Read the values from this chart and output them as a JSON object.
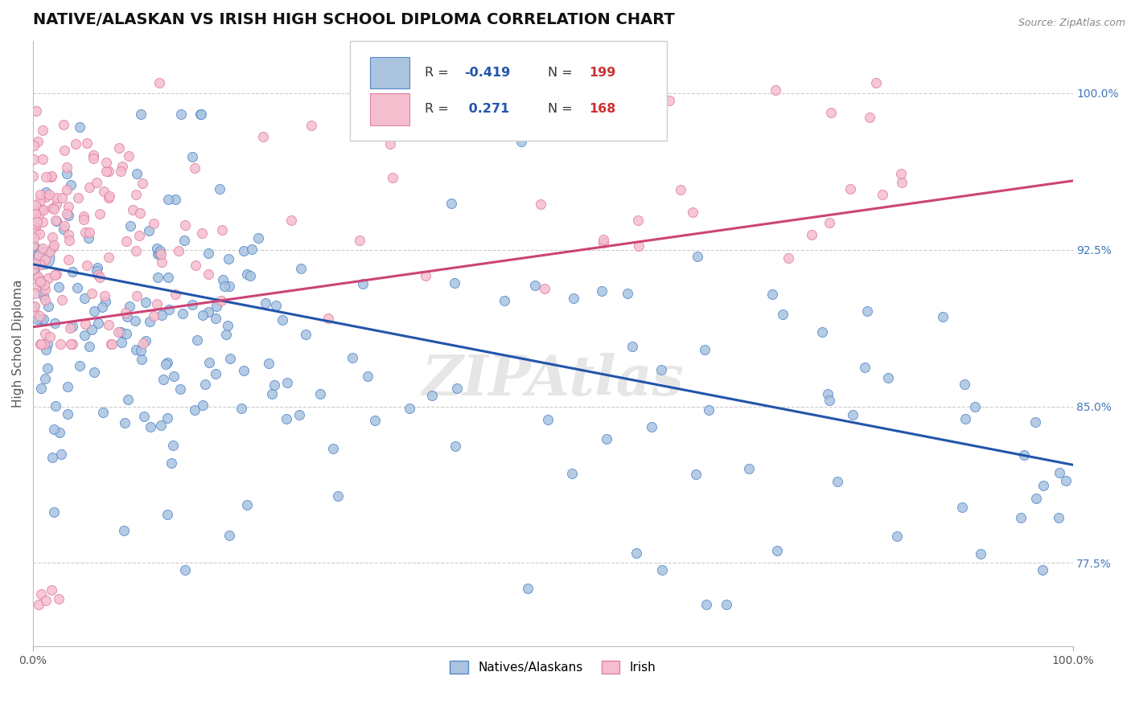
{
  "title": "NATIVE/ALASKAN VS IRISH HIGH SCHOOL DIPLOMA CORRELATION CHART",
  "source_text": "Source: ZipAtlas.com",
  "ylabel": "High School Diploma",
  "legend_labels": [
    "Natives/Alaskans",
    "Irish"
  ],
  "blue_color": "#aac4e0",
  "blue_edge_color": "#5588cc",
  "pink_color": "#f5bece",
  "pink_edge_color": "#e080a0",
  "blue_line_color": "#2255aa",
  "pink_line_color": "#cc4477",
  "R_blue": -0.419,
  "N_blue": 199,
  "R_pink": 0.271,
  "N_pink": 168,
  "xmin": 0.0,
  "xmax": 1.0,
  "ymin": 0.735,
  "ymax": 1.025,
  "right_yticks": [
    0.775,
    0.85,
    0.925,
    1.0
  ],
  "right_yticklabels": [
    "77.5%",
    "85.0%",
    "92.5%",
    "100.0%"
  ],
  "xtick_labels": [
    "0.0%",
    "100.0%"
  ],
  "watermark_text": "ZIPAtlas",
  "blue_line_y0": 0.918,
  "blue_line_y1": 0.822,
  "pink_line_y0": 0.888,
  "pink_line_y1": 0.958,
  "title_fontsize": 14,
  "axis_label_fontsize": 11,
  "tick_fontsize": 10,
  "marker_size": 75
}
